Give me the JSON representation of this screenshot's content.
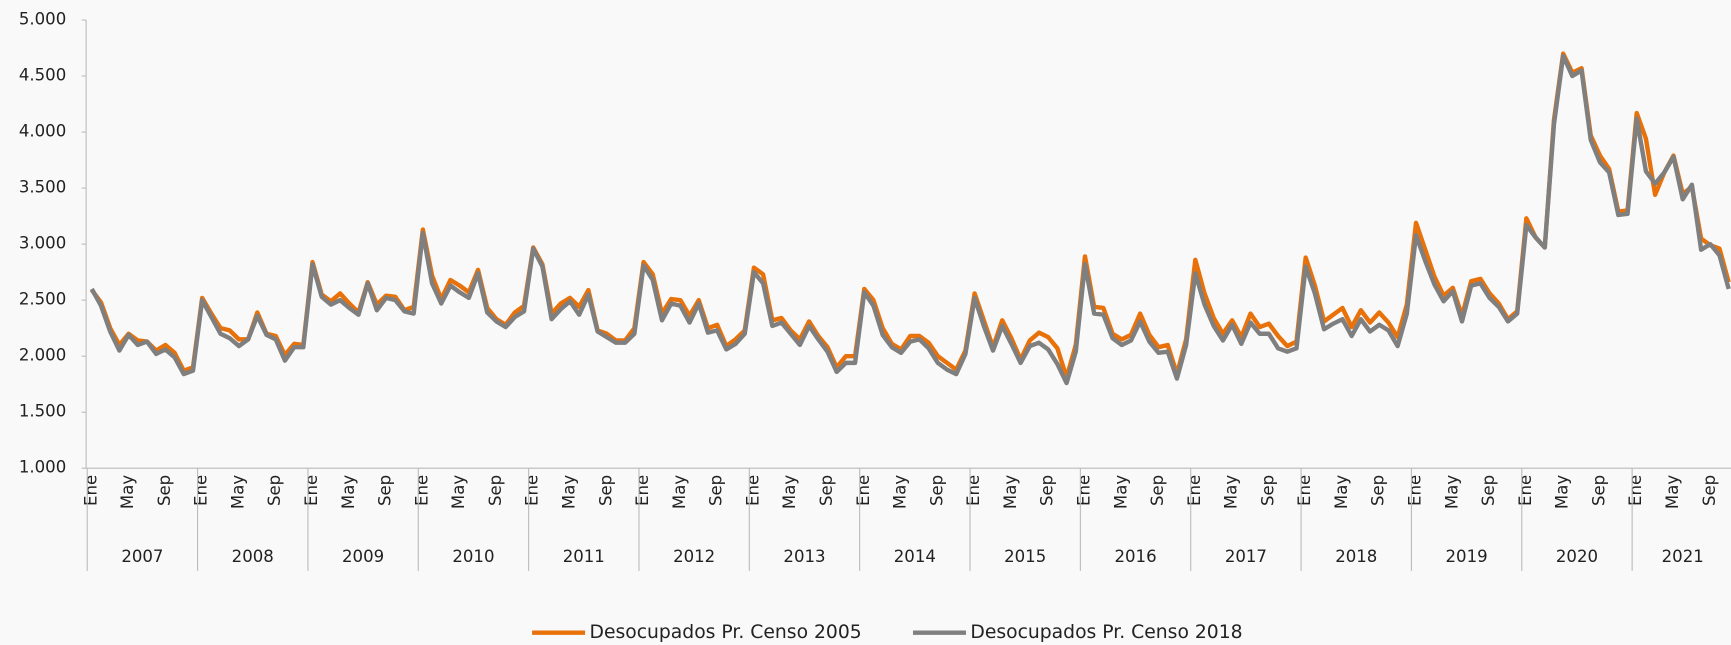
{
  "chart_data": {
    "type": "line",
    "categories": [
      "Ene",
      null,
      null,
      null,
      "May",
      null,
      null,
      null,
      "Sep",
      null,
      null,
      null,
      "Ene",
      null,
      null,
      null,
      "May",
      null,
      null,
      null,
      "Sep",
      null,
      null,
      null,
      "Ene",
      null,
      null,
      null,
      "May",
      null,
      null,
      null,
      "Sep",
      null,
      null,
      null,
      "Ene",
      null,
      null,
      null,
      "May",
      null,
      null,
      null,
      "Sep",
      null,
      null,
      null,
      "Ene",
      null,
      null,
      null,
      "May",
      null,
      null,
      null,
      "Sep",
      null,
      null,
      null,
      "Ene",
      null,
      null,
      null,
      "May",
      null,
      null,
      null,
      "Sep",
      null,
      null,
      null,
      "Ene",
      null,
      null,
      null,
      "May",
      null,
      null,
      null,
      "Sep",
      null,
      null,
      null,
      "Ene",
      null,
      null,
      null,
      "May",
      null,
      null,
      null,
      "Sep",
      null,
      null,
      null,
      "Ene",
      null,
      null,
      null,
      "May",
      null,
      null,
      null,
      "Sep",
      null,
      null,
      null,
      "Ene",
      null,
      null,
      null,
      "May",
      null,
      null,
      null,
      "Sep",
      null,
      null,
      null,
      "Ene",
      null,
      null,
      null,
      "May",
      null,
      null,
      null,
      "Sep",
      null,
      null,
      null,
      "Ene",
      null,
      null,
      null,
      "May",
      null,
      null,
      null,
      "Sep",
      null,
      null,
      null,
      "Ene",
      null,
      null,
      null,
      "May",
      null,
      null,
      null,
      "Sep",
      null,
      null,
      null,
      "Ene",
      null,
      null,
      null,
      "May",
      null,
      null,
      null,
      "Sep",
      null,
      null,
      null,
      "Ene",
      null,
      null,
      null,
      "May",
      null,
      null,
      null,
      "Sep",
      null,
      null
    ],
    "years": [
      "2007",
      "2008",
      "2009",
      "2010",
      "2011",
      "2012",
      "2013",
      "2014",
      "2015",
      "2016",
      "2017",
      "2018",
      "2019",
      "2020",
      "2021"
    ],
    "ylim": [
      1000,
      5000
    ],
    "yticks": [
      {
        "value": 1000,
        "label": "1.000"
      },
      {
        "value": 1500,
        "label": "1.500"
      },
      {
        "value": 2000,
        "label": "2.000"
      },
      {
        "value": 2500,
        "label": "2.500"
      },
      {
        "value": 3000,
        "label": "3.000"
      },
      {
        "value": 3500,
        "label": "3.500"
      },
      {
        "value": 4000,
        "label": "4.000"
      },
      {
        "value": 4500,
        "label": "4.500"
      },
      {
        "value": 5000,
        "label": "5.000"
      }
    ],
    "legend": "bottom",
    "series": [
      {
        "name": "Desocupados Pr. Censo 2005",
        "color": "#e8710a",
        "values": [
          2590,
          2480,
          2250,
          2100,
          2200,
          2140,
          2130,
          2050,
          2100,
          2030,
          1870,
          1900,
          2520,
          2380,
          2250,
          2230,
          2150,
          2150,
          2390,
          2200,
          2180,
          2010,
          2110,
          2100,
          2840,
          2550,
          2490,
          2560,
          2470,
          2390,
          2660,
          2460,
          2540,
          2530,
          2410,
          2440,
          3130,
          2720,
          2510,
          2680,
          2630,
          2570,
          2770,
          2430,
          2330,
          2280,
          2390,
          2450,
          2970,
          2820,
          2380,
          2470,
          2520,
          2440,
          2590,
          2230,
          2200,
          2140,
          2140,
          2250,
          2840,
          2730,
          2380,
          2510,
          2500,
          2360,
          2500,
          2250,
          2280,
          2090,
          2150,
          2230,
          2790,
          2730,
          2320,
          2340,
          2230,
          2150,
          2310,
          2180,
          2080,
          1900,
          2000,
          2000,
          2600,
          2500,
          2250,
          2110,
          2060,
          2180,
          2180,
          2120,
          2000,
          1940,
          1880,
          2050,
          2560,
          2320,
          2080,
          2320,
          2160,
          1970,
          2140,
          2210,
          2170,
          2070,
          1810,
          2100,
          2890,
          2440,
          2430,
          2200,
          2150,
          2190,
          2380,
          2190,
          2080,
          2100,
          1840,
          2150,
          2860,
          2560,
          2340,
          2200,
          2320,
          2170,
          2380,
          2260,
          2290,
          2180,
          2090,
          2130,
          2880,
          2630,
          2310,
          2370,
          2430,
          2260,
          2410,
          2300,
          2390,
          2300,
          2170,
          2460,
          3190,
          2950,
          2710,
          2540,
          2610,
          2360,
          2670,
          2690,
          2560,
          2470,
          2330,
          2400,
          3230,
          3060,
          2970,
          4110,
          4700,
          4530,
          4570,
          3970,
          3790,
          3670,
          3290,
          3300,
          4170,
          3940,
          3440,
          3640,
          3790,
          3450,
          3510,
          3050,
          2990,
          2960,
          2660
        ]
      },
      {
        "name": "Desocupados Pr. Censo 2018",
        "color": "#7f7f7f",
        "values": [
          2600,
          2450,
          2220,
          2050,
          2190,
          2100,
          2130,
          2020,
          2060,
          1990,
          1840,
          1870,
          2500,
          2350,
          2200,
          2160,
          2090,
          2150,
          2360,
          2190,
          2150,
          1960,
          2080,
          2080,
          2820,
          2530,
          2460,
          2500,
          2430,
          2370,
          2650,
          2410,
          2520,
          2500,
          2400,
          2380,
          3100,
          2650,
          2470,
          2630,
          2570,
          2520,
          2740,
          2390,
          2310,
          2260,
          2350,
          2400,
          2960,
          2800,
          2330,
          2420,
          2490,
          2370,
          2550,
          2220,
          2170,
          2120,
          2120,
          2200,
          2810,
          2680,
          2320,
          2470,
          2450,
          2300,
          2470,
          2210,
          2230,
          2060,
          2110,
          2200,
          2750,
          2650,
          2270,
          2300,
          2200,
          2100,
          2270,
          2150,
          2040,
          1860,
          1940,
          1940,
          2570,
          2450,
          2190,
          2080,
          2030,
          2130,
          2150,
          2070,
          1940,
          1880,
          1840,
          2020,
          2520,
          2270,
          2050,
          2270,
          2110,
          1940,
          2090,
          2120,
          2060,
          1930,
          1760,
          2040,
          2820,
          2380,
          2370,
          2160,
          2100,
          2140,
          2310,
          2130,
          2030,
          2040,
          1800,
          2100,
          2740,
          2460,
          2270,
          2140,
          2280,
          2110,
          2300,
          2200,
          2200,
          2070,
          2040,
          2070,
          2800,
          2560,
          2240,
          2290,
          2330,
          2180,
          2330,
          2220,
          2280,
          2230,
          2090,
          2380,
          3080,
          2850,
          2640,
          2490,
          2580,
          2310,
          2630,
          2650,
          2520,
          2440,
          2310,
          2380,
          3170,
          3060,
          2970,
          4070,
          4680,
          4500,
          4550,
          3930,
          3730,
          3640,
          3260,
          3270,
          4120,
          3650,
          3540,
          3640,
          3780,
          3400,
          3530,
          2950,
          3000,
          2900,
          2600
        ]
      }
    ]
  }
}
